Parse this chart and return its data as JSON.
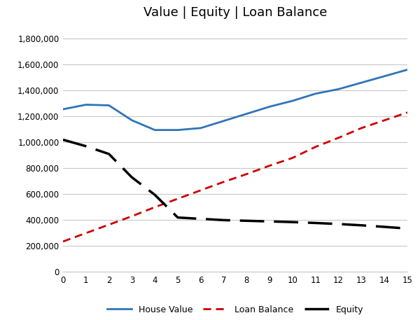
{
  "title": "Value | Equity | Loan Balance",
  "x": [
    0,
    1,
    2,
    3,
    4,
    5,
    6,
    7,
    8,
    9,
    10,
    11,
    12,
    13,
    14,
    15
  ],
  "house_value": [
    1255000,
    1290000,
    1285000,
    1170000,
    1095000,
    1095000,
    1110000,
    1165000,
    1220000,
    1275000,
    1320000,
    1375000,
    1410000,
    1460000,
    1510000,
    1560000
  ],
  "loan_balance": [
    235000,
    300000,
    365000,
    430000,
    500000,
    565000,
    630000,
    695000,
    755000,
    820000,
    880000,
    965000,
    1035000,
    1110000,
    1170000,
    1230000
  ],
  "equity": [
    1020000,
    970000,
    910000,
    730000,
    595000,
    420000,
    410000,
    400000,
    395000,
    390000,
    385000,
    378000,
    370000,
    360000,
    348000,
    335000
  ],
  "house_value_color": "#2E75B6",
  "loan_balance_color": "#CC0000",
  "equity_color": "#000000",
  "ylim": [
    0,
    1900000
  ],
  "xlim": [
    0,
    15
  ],
  "yticks": [
    0,
    200000,
    400000,
    600000,
    800000,
    1000000,
    1200000,
    1400000,
    1600000,
    1800000
  ],
  "xticks": [
    0,
    1,
    2,
    3,
    4,
    5,
    6,
    7,
    8,
    9,
    10,
    11,
    12,
    13,
    14,
    15
  ],
  "legend_labels": [
    "House Value",
    "Loan Balance",
    "Equity"
  ],
  "background_color": "#FFFFFF",
  "grid_color": "#C8C8C8"
}
